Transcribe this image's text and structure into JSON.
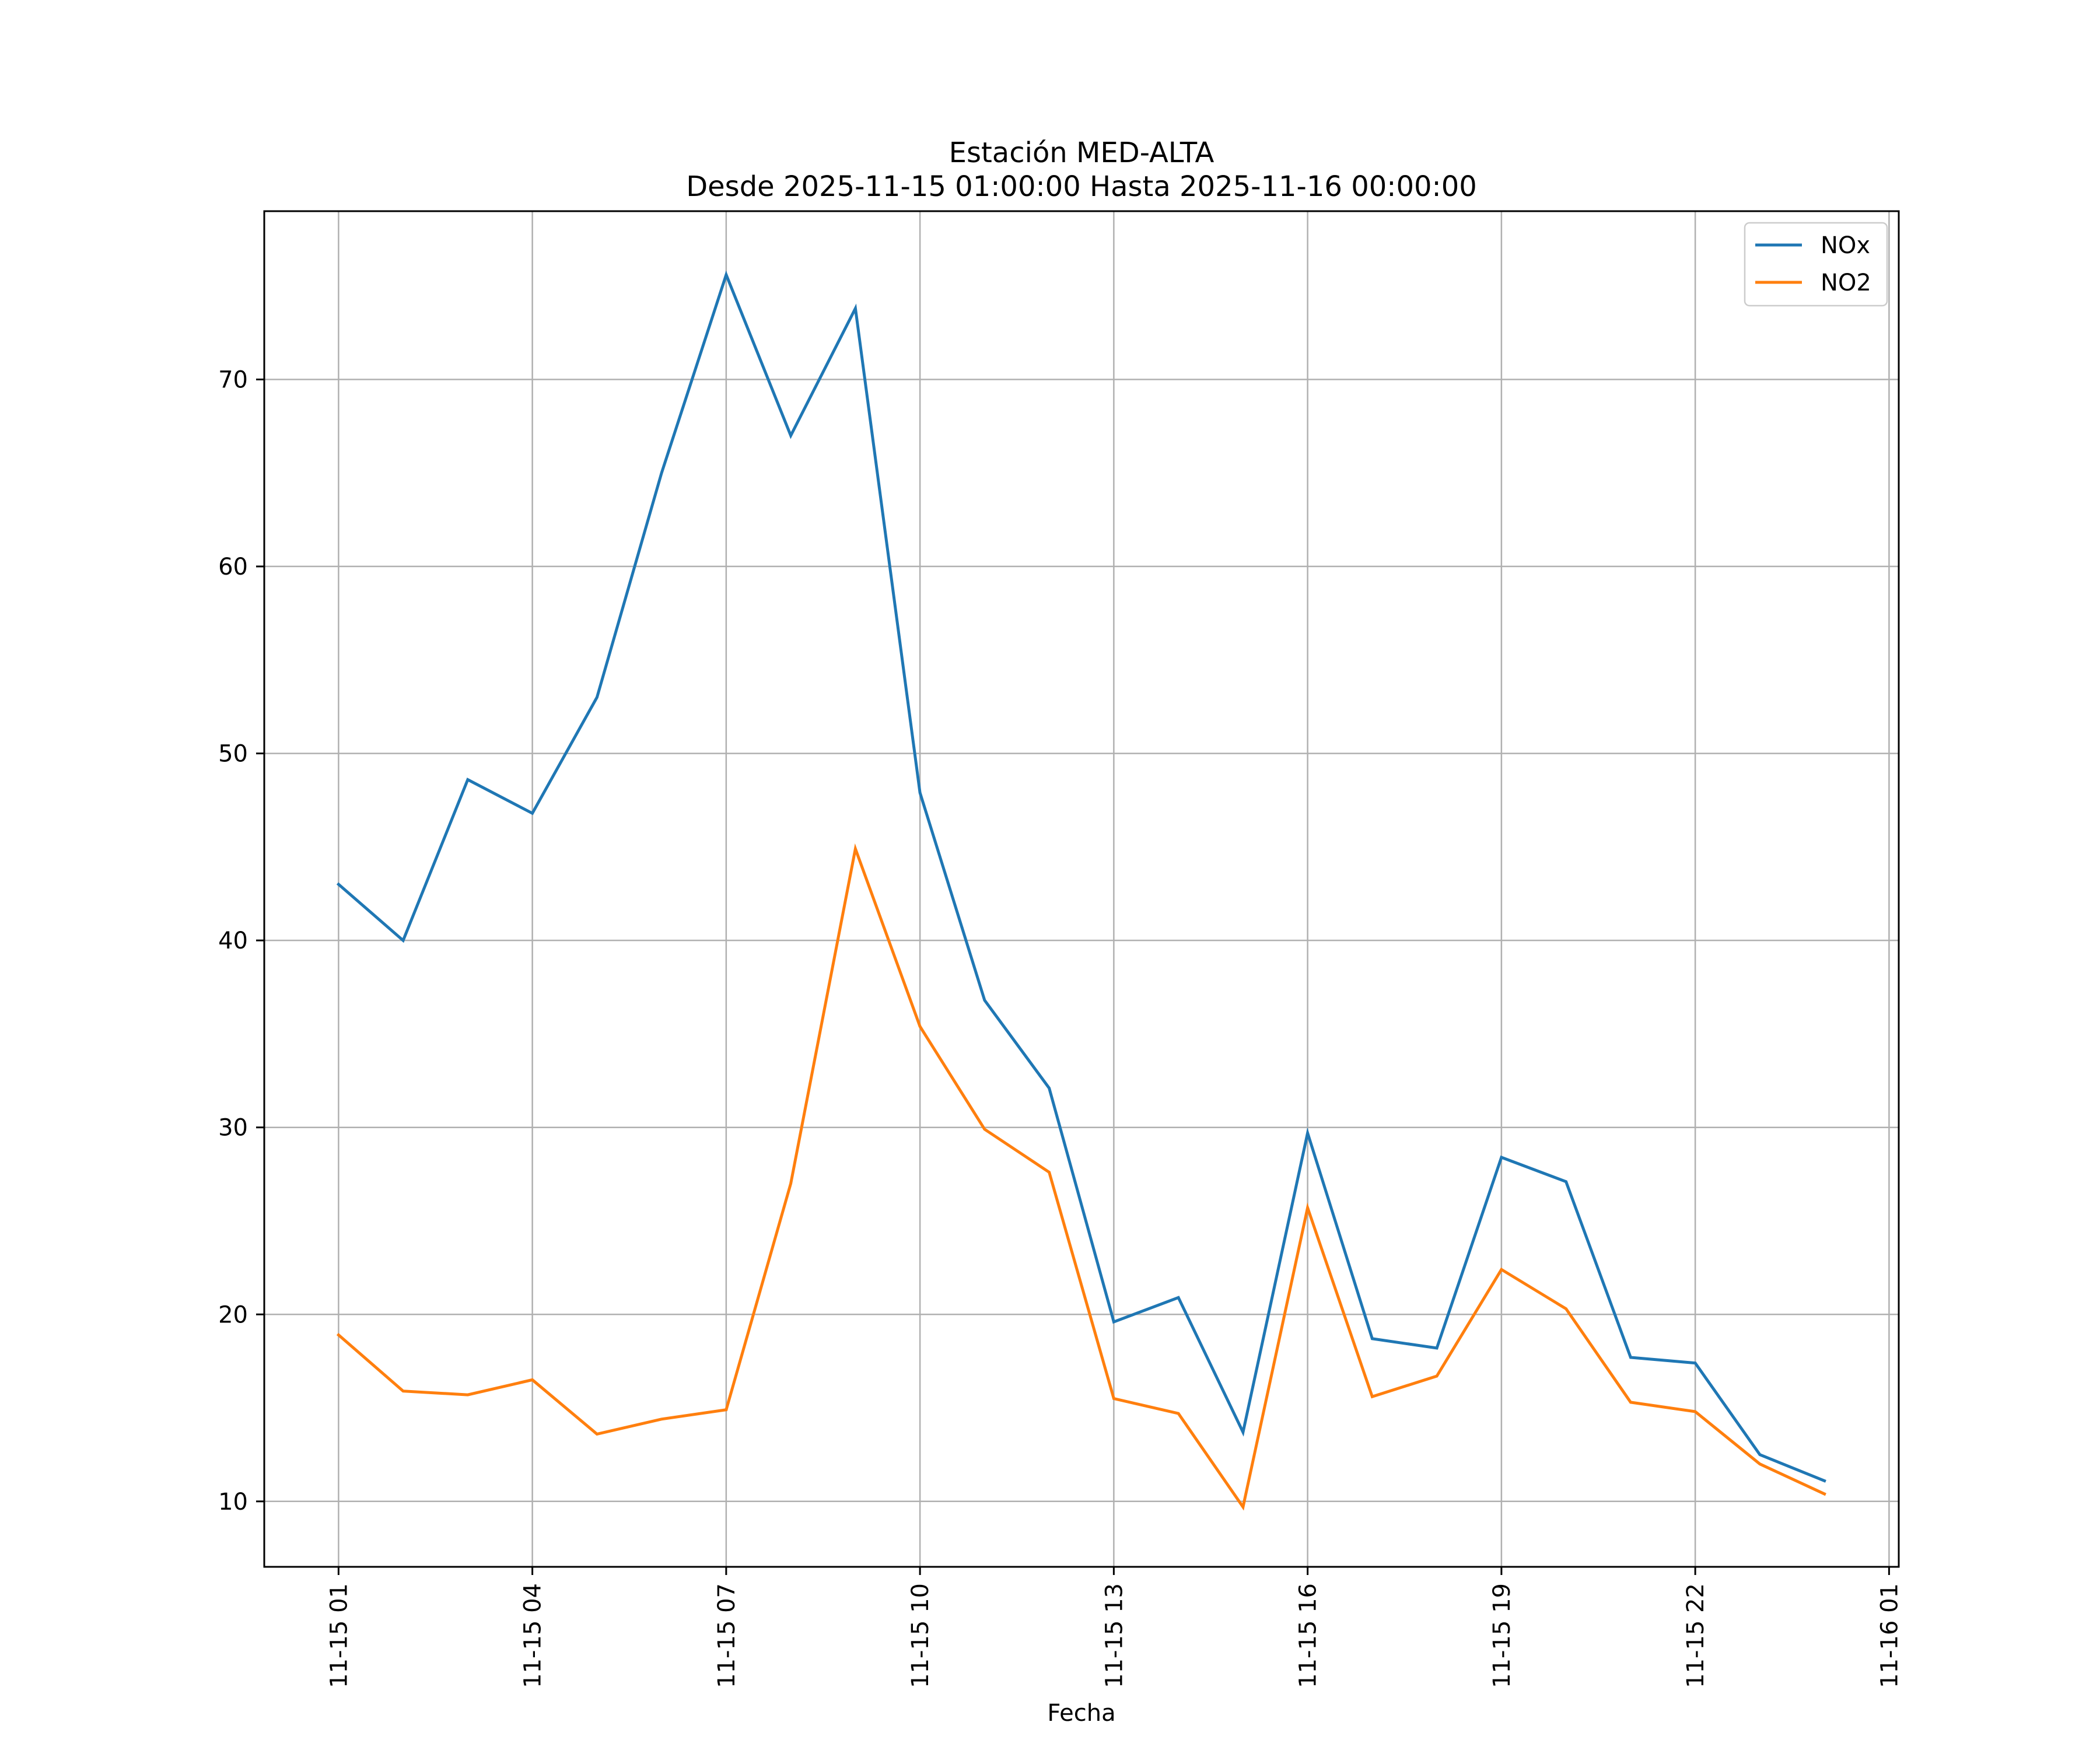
{
  "chart_data": {
    "type": "line",
    "title": "Estación MED-ALTA",
    "subtitle": "Desde 2025-11-15 01:00:00 Hasta 2025-11-16 00:00:00",
    "xlabel": "Fecha",
    "ylabel": "",
    "x": [
      1,
      2,
      3,
      4,
      5,
      6,
      7,
      8,
      9,
      10,
      11,
      12,
      13,
      14,
      15,
      16,
      17,
      18,
      19,
      20,
      21,
      22,
      23,
      24
    ],
    "xlim": [
      -0.15,
      25.15
    ],
    "ylim": [
      6.5,
      79
    ],
    "xticks": [
      1,
      4,
      7,
      10,
      13,
      16,
      19,
      22,
      25
    ],
    "xtick_labels": [
      "11-15 01",
      "11-15 04",
      "11-15 07",
      "11-15 10",
      "11-15 13",
      "11-15 16",
      "11-15 19",
      "11-15 22",
      "11-16 01"
    ],
    "yticks": [
      10,
      20,
      30,
      40,
      50,
      60,
      70
    ],
    "ytick_labels": [
      "10",
      "20",
      "30",
      "40",
      "50",
      "60",
      "70"
    ],
    "grid": true,
    "legend": "top-right",
    "series": [
      {
        "name": "NOx",
        "color": "#1f77b4",
        "values": [
          43.0,
          40.0,
          48.6,
          46.8,
          53.0,
          65.0,
          75.6,
          67.0,
          73.8,
          47.9,
          36.8,
          32.1,
          19.6,
          20.9,
          13.7,
          29.7,
          18.7,
          18.2,
          28.4,
          27.1,
          17.7,
          17.4,
          12.5,
          11.1
        ]
      },
      {
        "name": "NO2",
        "color": "#ff7f0e",
        "values": [
          18.9,
          15.9,
          15.7,
          16.5,
          13.6,
          14.4,
          14.9,
          27.0,
          44.9,
          35.4,
          29.9,
          27.6,
          15.5,
          14.7,
          9.7,
          25.7,
          15.6,
          16.7,
          22.4,
          20.3,
          15.3,
          14.8,
          12.0,
          10.4
        ]
      }
    ]
  }
}
